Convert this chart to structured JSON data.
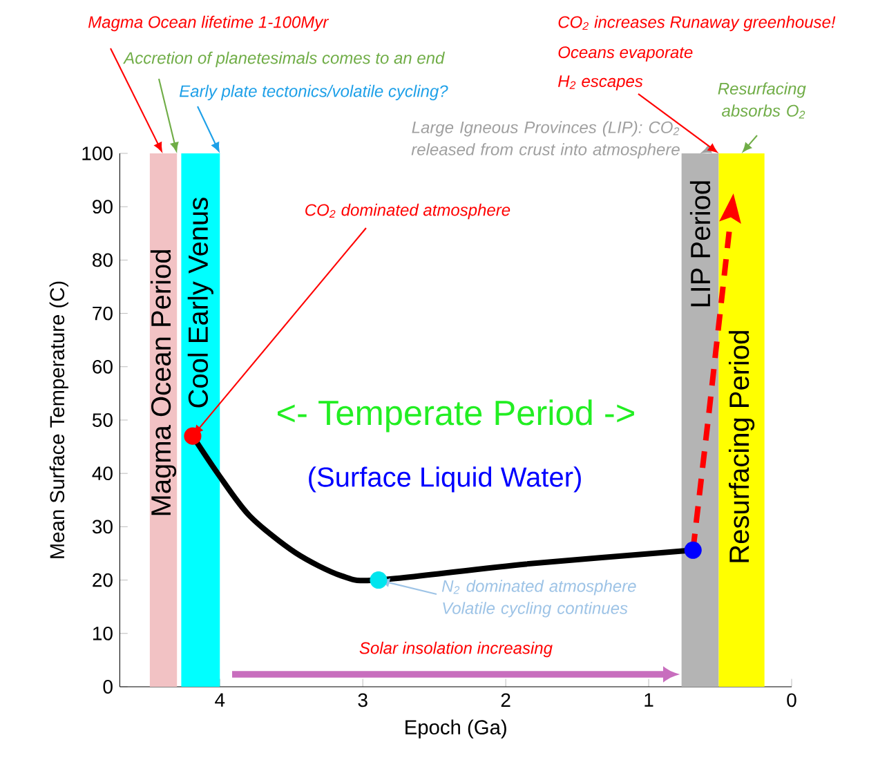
{
  "chart_data": {
    "type": "line",
    "xlabel": "Epoch (Ga)",
    "ylabel": "Mean Surface Temperature (C)",
    "xlim": [
      4.7,
      0
    ],
    "ylim": [
      0,
      100
    ],
    "xticks": [
      4,
      3,
      2,
      1,
      0
    ],
    "yticks": [
      0,
      10,
      20,
      30,
      40,
      50,
      60,
      70,
      80,
      90,
      100
    ],
    "grid": false,
    "series": [
      {
        "color": "#000000",
        "x": [
          4.19,
          4.01,
          3.79,
          3.47,
          3.15,
          2.89,
          1.86,
          0.69
        ],
        "values": [
          47,
          39.8,
          32,
          25.1,
          20.8,
          20,
          23,
          25.6
        ],
        "line_style": "solid"
      },
      {
        "color": "#ff0000",
        "x": [
          0.69,
          0.58,
          0.43
        ],
        "values": [
          25.6,
          51,
          87
        ],
        "line_style": "dashed"
      },
      {
        "type": "scatter",
        "color": "#ff0000",
        "x": [
          4.19
        ],
        "values": [
          47
        ],
        "marker": "circle"
      },
      {
        "type": "scatter",
        "color": "#00e5ee",
        "x": [
          2.89
        ],
        "values": [
          20
        ],
        "marker": "circle"
      },
      {
        "type": "scatter",
        "color": "#0000ff",
        "x": [
          0.69
        ],
        "values": [
          25.6
        ],
        "marker": "circle"
      }
    ],
    "bands": [
      {
        "axis": "x",
        "from": 4.49,
        "to": 4.3,
        "label": "Magma Ocean Period",
        "color": "#f2c2c4"
      },
      {
        "axis": "x",
        "from": 4.27,
        "to": 4.0,
        "label": "Cool Early Venus",
        "color": "#00ffff"
      },
      {
        "axis": "x",
        "from": 0.77,
        "to": 0.51,
        "label": "LIP Period",
        "color": "#b4b4b4"
      },
      {
        "axis": "x",
        "from": 0.51,
        "to": 0.19,
        "label": "Resurfacing Period",
        "color": "#ffff00"
      }
    ],
    "annotations": [
      {
        "text": "Magma Ocean lifetime 1-100Myr",
        "x": 4.4,
        "y": 100
      },
      {
        "text": "Accretion of planetesimals comes to an end",
        "x": 4.3,
        "y": 100
      },
      {
        "text": "Early plate tectonics/volatile cycling?",
        "x": 4.0,
        "y": 100
      },
      {
        "text": "Large Igneous Provinces (LIP): CO$_{2}$ released from crust into atmosphere",
        "x": 0.64,
        "y": 100
      },
      "CO$_{2}$ increases Runaway greenhouse!",
      {
        "text": "Resurfacing absorbs O$_{2}$",
        "x": 0.35,
        "y": 100
      },
      {
        "text": "CO$_{2}$ dominated atmosphere",
        "x": 4.19,
        "y": 47
      },
      {
        "text": "N$_{2}$ dominated atmosphere Volatile cycling continues",
        "x": 2.89,
        "y": 20
      },
      "<- Temperate Period ->",
      "(Surface Liquid Water)",
      "Solar insolation increasing",
      "Oceans evaporate",
      {
        "text": "H$_{2}$ escapes",
        "x": 0.51,
        "y": 100
      }
    ]
  }
}
